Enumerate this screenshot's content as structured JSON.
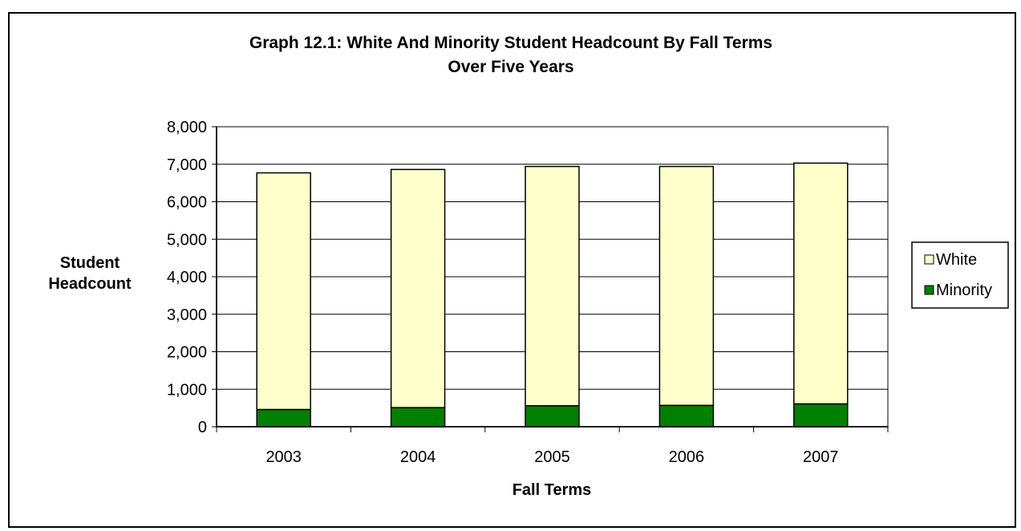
{
  "chart_data": {
    "type": "bar",
    "stacked": true,
    "title": "Graph 12.1: White And Minority Student Headcount By Fall Terms",
    "subtitle": "Over Five Years",
    "xlabel": "Fall Terms",
    "ylabel_lines": [
      "Student",
      "Headcount"
    ],
    "categories": [
      "2003",
      "2004",
      "2005",
      "2006",
      "2007"
    ],
    "ylim": [
      0,
      8000
    ],
    "yticks": [
      0,
      1000,
      2000,
      3000,
      4000,
      5000,
      6000,
      7000,
      8000
    ],
    "ytick_labels": [
      "0",
      "1,000",
      "2,000",
      "3,000",
      "4,000",
      "5,000",
      "6,000",
      "7,000",
      "8,000"
    ],
    "grid": true,
    "legend_position": "right",
    "series": [
      {
        "name": "Minority",
        "color": "#008000",
        "values": [
          460,
          510,
          560,
          570,
          610
        ]
      },
      {
        "name": "White",
        "color": "#FFFFCC",
        "values": [
          6310,
          6350,
          6380,
          6370,
          6420
        ]
      }
    ],
    "legend_order": [
      "White",
      "Minority"
    ]
  }
}
